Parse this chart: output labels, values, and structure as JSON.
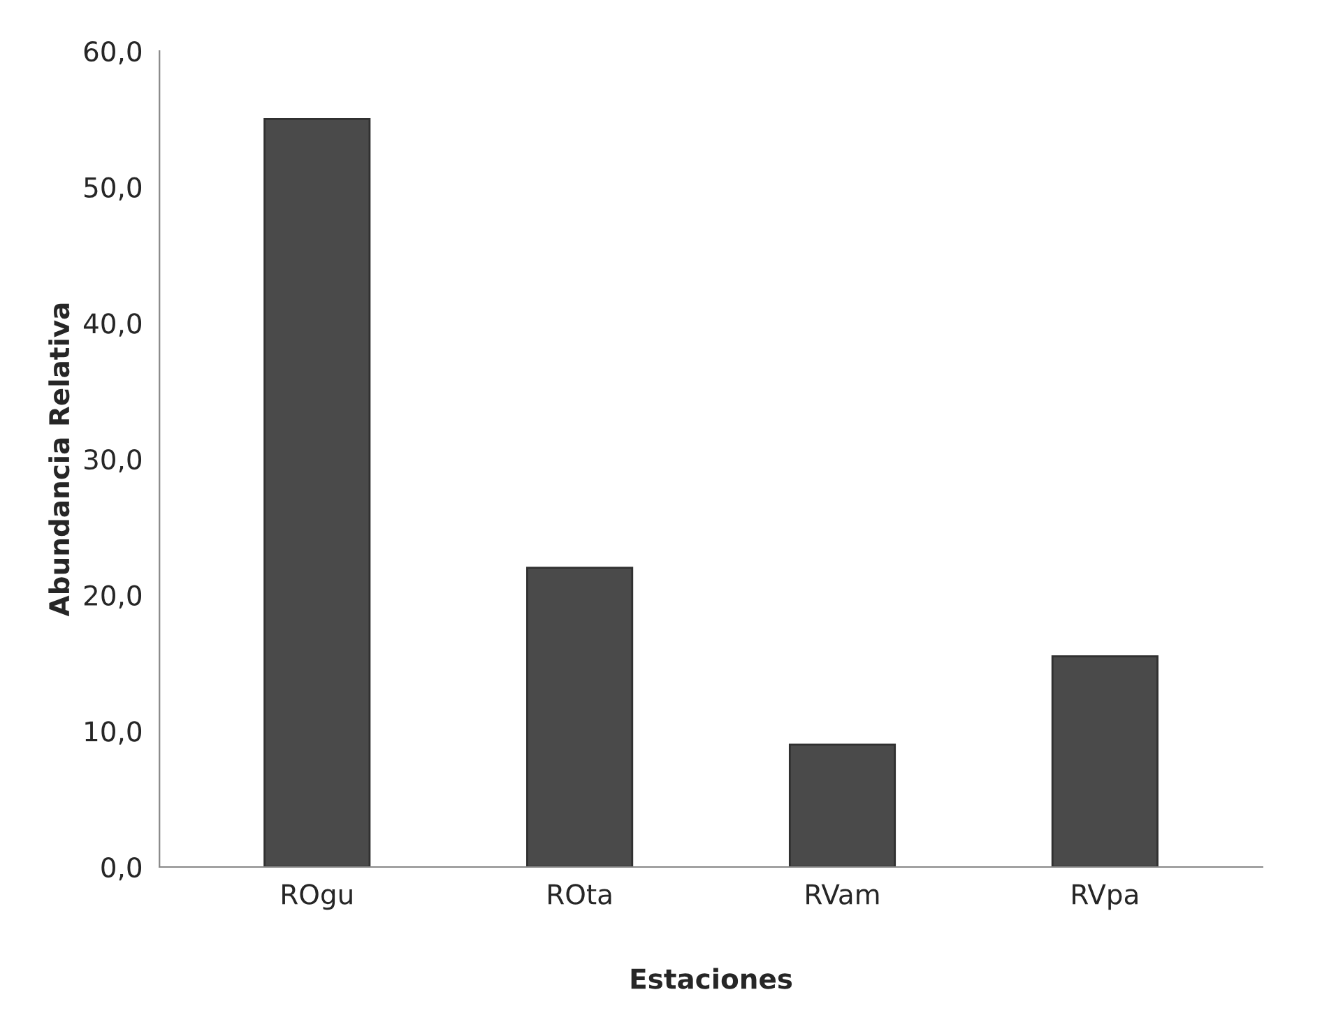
{
  "chart_data": {
    "type": "bar",
    "xlabel": "Estaciones",
    "ylabel": "Abundancia Relativa",
    "categories": [
      "ROgu",
      "ROta",
      "RVam",
      "RVpa"
    ],
    "values": [
      55,
      22,
      9,
      15.5
    ],
    "color": "#4a4a4a",
    "ylim": [
      0,
      60
    ],
    "yticks": [
      {
        "value": 0,
        "label": "0,0"
      },
      {
        "value": 10,
        "label": "10,0"
      },
      {
        "value": 20,
        "label": "20,0"
      },
      {
        "value": 30,
        "label": "30,0"
      },
      {
        "value": 40,
        "label": "40,0"
      },
      {
        "value": 50,
        "label": "50,0"
      },
      {
        "value": 60,
        "label": "60,0"
      }
    ],
    "grid": false,
    "legend": false
  }
}
